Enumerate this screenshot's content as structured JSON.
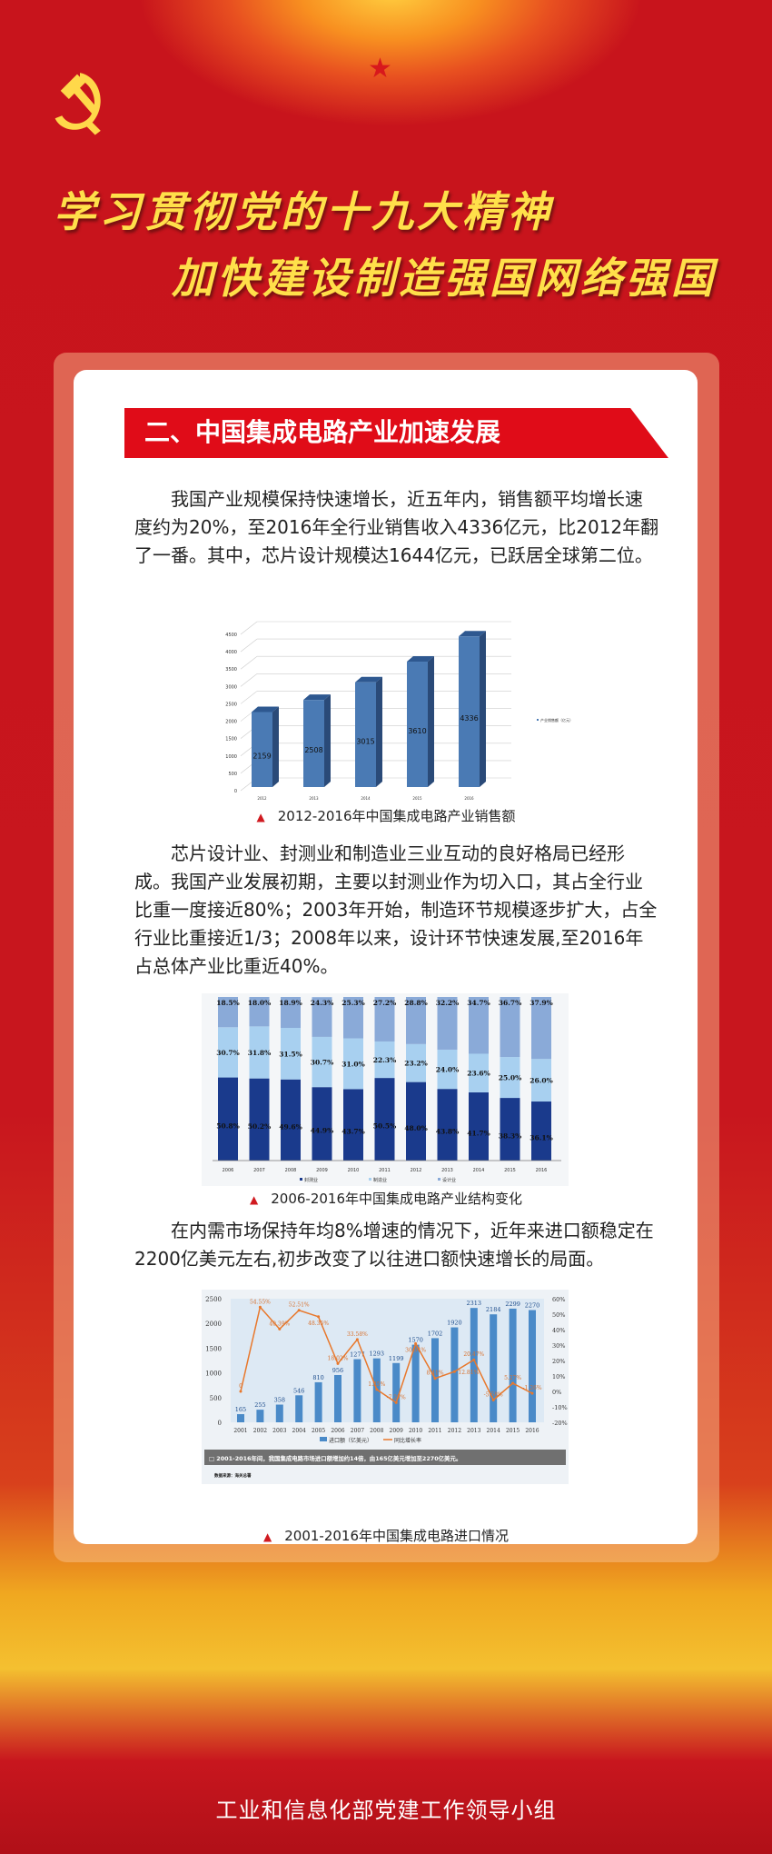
{
  "header": {
    "title_line1": "学习贯彻党的十九大精神",
    "title_line2": "加快建设制造强国网络强国"
  },
  "section": {
    "heading": "二、中国集成电路产业加速发展"
  },
  "paragraphs": [
    "我国产业规模保持快速增长，近五年内，销售额平均增长速度约为20%，至2016年全行业销售收入4336亿元，比2012年翻了一番。其中，芯片设计规模达1644亿元，已跃居全球第二位。",
    "芯片设计业、封测业和制造业三业互动的良好格局已经形成。我国产业发展初期，主要以封测业作为切入口，其占全行业比重一度接近80%；2003年开始，制造环节规模逐步扩大，占全行业比重接近1/3；2008年以来，设计环节快速发展,至2016年占总体产业比重近40%。",
    "在内需市场保持年均8%增速的情况下，近年来进口额稳定在2200亿美元左右,初步改变了以往进口额快速增长的局面。"
  ],
  "captions": [
    "2012-2016年中国集成电路产业销售额",
    "2006-2016年中国集成电路产业结构变化",
    "2001-2016年中国集成电路进口情况"
  ],
  "footer": {
    "org": "工业和信息化部党建工作领导小组"
  },
  "colors": {
    "red": "#e00c18",
    "gold": "#ffe04a",
    "bar_blue": "#4a7ab4",
    "dark_blue": "#1a3a8c",
    "light_blue": "#a8d0f0",
    "line_orange": "#e8782c"
  },
  "chart_data": [
    {
      "type": "bar",
      "style": "3d",
      "categories": [
        "2012",
        "2013",
        "2014",
        "2015",
        "2016"
      ],
      "values": [
        2159,
        2508,
        3015,
        3610,
        4336
      ],
      "series": [
        {
          "name": "产业销售额（亿元）",
          "values": [
            2159,
            2508,
            3015,
            3610,
            4336
          ]
        }
      ],
      "ylim": [
        0,
        4500
      ],
      "yticks": [
        0,
        500,
        1000,
        1500,
        2000,
        2500,
        3000,
        3500,
        4000,
        4500
      ],
      "grid": true,
      "legend": "right"
    },
    {
      "type": "bar",
      "stacked": true,
      "categories": [
        "2006",
        "2007",
        "2008",
        "2009",
        "2010",
        "2011",
        "2012",
        "2013",
        "2014",
        "2015",
        "2016"
      ],
      "series": [
        {
          "name": "封测业",
          "values": [
            50.8,
            50.2,
            49.6,
            44.9,
            43.7,
            50.5,
            48.0,
            43.8,
            41.7,
            38.3,
            36.1
          ]
        },
        {
          "name": "制造业",
          "values": [
            30.7,
            31.8,
            31.5,
            30.7,
            31.0,
            22.3,
            23.2,
            24.0,
            23.6,
            25.0,
            26.0
          ]
        },
        {
          "name": "设计业",
          "values": [
            18.5,
            18.0,
            18.9,
            24.3,
            25.3,
            27.2,
            28.8,
            32.2,
            34.7,
            36.7,
            37.9
          ]
        }
      ],
      "unit": "%",
      "legend": "bottom"
    },
    {
      "type": "bar+line",
      "categories": [
        "2001",
        "2002",
        "2003",
        "2004",
        "2005",
        "2006",
        "2007",
        "2008",
        "2009",
        "2010",
        "2011",
        "2012",
        "2013",
        "2014",
        "2015",
        "2016"
      ],
      "series": [
        {
          "name": "进口额（亿美元）",
          "type": "bar",
          "axis": "left",
          "values": [
            165,
            255,
            358,
            546,
            810,
            956,
            1277,
            1293,
            1199,
            1570,
            1702,
            1920,
            2313,
            2184,
            2299,
            2270
          ]
        },
        {
          "name": "同比增长率",
          "type": "line",
          "axis": "right",
          "values": [
            0,
            54.55,
            40.39,
            52.51,
            48.35,
            18.02,
            33.58,
            1.25,
            -7.27,
            30.94,
            8.41,
            12.81,
            20.47,
            -5.58,
            5.27,
            -1.26
          ]
        }
      ],
      "ylim_left": [
        0,
        2500
      ],
      "yticks_left": [
        0,
        500,
        1000,
        1500,
        2000,
        2500
      ],
      "ylim_right": [
        -20,
        60
      ],
      "yticks_right": [
        "-20%",
        "-10%",
        "0%",
        "10%",
        "20%",
        "30%",
        "40%",
        "50%",
        "60%"
      ],
      "note": "2001-2016年间，我国集成电路市场进口额增加约14倍，由165亿美元增加至2270亿美元。",
      "source": "数据来源：海关总署",
      "legend": "bottom"
    }
  ]
}
